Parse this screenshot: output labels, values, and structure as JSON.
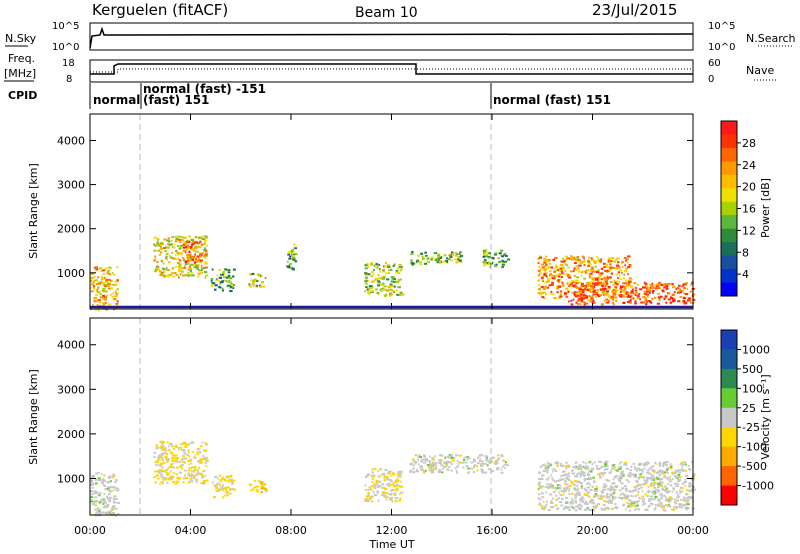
{
  "header": {
    "station": "Kerguelen (fitACF)",
    "beam": "Beam 10",
    "date": "23/Jul/2015"
  },
  "status_panels": {
    "nsky": {
      "label": "N.Sky",
      "ticks": [
        "10^5",
        "10^0"
      ]
    },
    "nsearch": {
      "label": "N.Search",
      "ticks": [
        "10^5",
        "10^0"
      ]
    },
    "freq": {
      "label_line1": "Freq.",
      "label_line2": "[MHz]",
      "ticks": [
        "18",
        "8"
      ]
    },
    "nave": {
      "label": "Nave",
      "ticks": [
        "60",
        "0"
      ]
    },
    "cpid": {
      "label": "CPID",
      "segments": [
        {
          "start": 0.0,
          "text": "normal"
        },
        {
          "start": 2.0,
          "text": "normal (fast) -151",
          "text2": "(fast) 151"
        },
        {
          "start": 16.0,
          "text": "normal (fast) 151"
        }
      ]
    }
  },
  "time_axis": {
    "label": "Time UT",
    "tick_labels": [
      "00:00",
      "04:00",
      "08:00",
      "12:00",
      "16:00",
      "20:00",
      "00:00"
    ]
  },
  "colorbars": {
    "power": {
      "label": "Power [dB]",
      "tick_labels": [
        "28",
        "24",
        "20",
        "16",
        "12",
        "8",
        "4"
      ],
      "colors": [
        "#ff1a1a",
        "#ff3300",
        "#ff6600",
        "#ff9900",
        "#ffbb00",
        "#f0e000",
        "#a8d200",
        "#5cb83a",
        "#2e8b3a",
        "#1a6e5a",
        "#1a4fa0",
        "#0033cc",
        "#0000ff"
      ]
    },
    "velocity": {
      "label": "Velocity [m s⁻¹]",
      "tick_labels": [
        "1000",
        "500",
        "100",
        "25",
        "-25",
        "-100",
        "-500",
        "-1000"
      ],
      "colors": [
        "#1a3fb5",
        "#1a5a9a",
        "#2a8a50",
        "#66cc33",
        "#c8c8c8",
        "#ffd700",
        "#ffaa00",
        "#ff6600",
        "#ff0000"
      ]
    }
  },
  "chart_data": [
    {
      "type": "heatmap",
      "title": "Kerguelen (fitACF) Beam 10 23/Jul/2015",
      "xlabel": "Time UT",
      "ylabel": "Slant Range [km]",
      "xlim": [
        "00:00",
        "00:00"
      ],
      "ylim": [
        180,
        4600
      ],
      "y_ticks": [
        1000,
        2000,
        3000,
        4000
      ],
      "colorbar": "Power [dB]",
      "colorbar_range": [
        0,
        32
      ],
      "scatter_regions": [
        {
          "t0": 0.0,
          "t1": 1.1,
          "r0": 180,
          "r1": 1150,
          "value": 22
        },
        {
          "t0": 2.5,
          "t1": 4.6,
          "r0": 900,
          "r1": 1850,
          "value": 20
        },
        {
          "t0": 3.7,
          "t1": 4.4,
          "r0": 1250,
          "r1": 1750,
          "value": 28
        },
        {
          "t0": 4.8,
          "t1": 5.7,
          "r0": 600,
          "r1": 1100,
          "value": 12
        },
        {
          "t0": 6.3,
          "t1": 7.0,
          "r0": 700,
          "r1": 1000,
          "value": 16
        },
        {
          "t0": 7.8,
          "t1": 8.2,
          "r0": 1100,
          "r1": 1700,
          "value": 12
        },
        {
          "t0": 10.9,
          "t1": 12.4,
          "r0": 500,
          "r1": 1250,
          "value": 16
        },
        {
          "t0": 12.7,
          "t1": 14.8,
          "r0": 1200,
          "r1": 1500,
          "value": 14
        },
        {
          "t0": 15.6,
          "t1": 16.6,
          "r0": 1150,
          "r1": 1550,
          "value": 12
        },
        {
          "t0": 17.8,
          "t1": 21.5,
          "r0": 450,
          "r1": 1400,
          "value": 24
        },
        {
          "t0": 19.0,
          "t1": 24.0,
          "r0": 300,
          "r1": 800,
          "value": 28
        }
      ]
    },
    {
      "type": "heatmap",
      "xlabel": "Time UT",
      "ylabel": "Slant Range [km]",
      "xlim": [
        "00:00",
        "00:00"
      ],
      "ylim": [
        180,
        4600
      ],
      "y_ticks": [
        1000,
        2000,
        3000,
        4000
      ],
      "colorbar": "Velocity [m s⁻¹]",
      "colorbar_range": [
        -1000,
        1000
      ],
      "scatter_regions": [
        {
          "t0": 0.0,
          "t1": 1.1,
          "r0": 180,
          "r1": 1150,
          "value": 0
        },
        {
          "t0": 2.5,
          "t1": 4.6,
          "r0": 900,
          "r1": 1850,
          "value": -150
        },
        {
          "t0": 4.8,
          "t1": 5.7,
          "r0": 600,
          "r1": 1100,
          "value": -200
        },
        {
          "t0": 6.3,
          "t1": 7.0,
          "r0": 700,
          "r1": 1000,
          "value": -300
        },
        {
          "t0": 10.9,
          "t1": 12.4,
          "r0": 500,
          "r1": 1250,
          "value": -100
        },
        {
          "t0": 12.7,
          "t1": 16.6,
          "r0": 1150,
          "r1": 1550,
          "value": 0
        },
        {
          "t0": 17.8,
          "t1": 24.0,
          "r0": 300,
          "r1": 1400,
          "value": 0
        }
      ]
    }
  ]
}
